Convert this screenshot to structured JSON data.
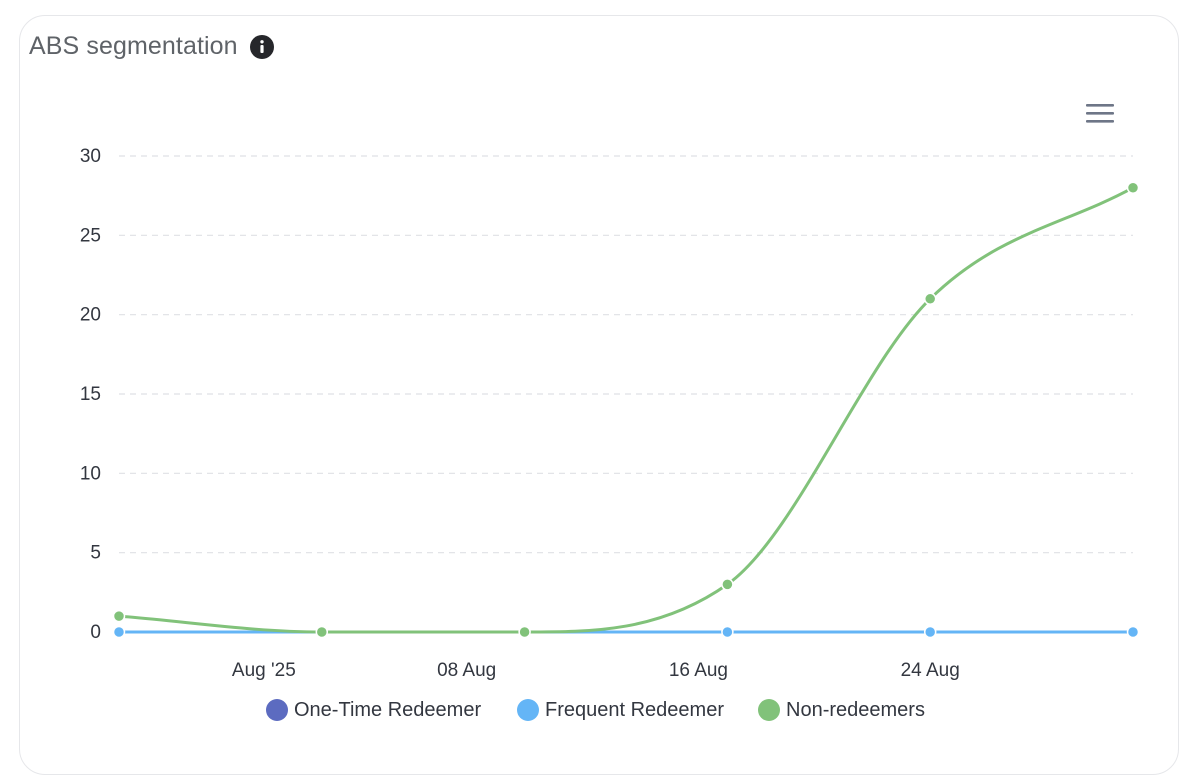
{
  "card": {
    "title": "ABS segmentation",
    "info_icon": "info-icon",
    "menu_icon": "hamburger-menu-icon"
  },
  "colors": {
    "one_time": "#5c6bc0",
    "frequent": "#64b5f6",
    "non_redeemers": "#81c27a",
    "grid": "#dfe1e5",
    "axis_text": "#333740"
  },
  "chart_data": {
    "type": "line",
    "title": "ABS segmentation",
    "xlabel": "",
    "ylabel": "",
    "x": [
      "2025-07-27",
      "2025-08-03",
      "2025-08-10",
      "2025-08-17",
      "2025-08-24",
      "2025-08-31"
    ],
    "x_ticks": [
      {
        "date": "2025-08-01",
        "label": "Aug '25"
      },
      {
        "date": "2025-08-08",
        "label": "08 Aug"
      },
      {
        "date": "2025-08-16",
        "label": "16 Aug"
      },
      {
        "date": "2025-08-24",
        "label": "24 Aug"
      }
    ],
    "y_ticks": [
      0,
      5,
      10,
      15,
      20,
      25,
      30
    ],
    "ylim": [
      0,
      30
    ],
    "grid": true,
    "smooth": true,
    "legend_position": "bottom-center",
    "series": [
      {
        "name": "One-Time Redeemer",
        "color": "#5c6bc0",
        "values": [
          0,
          0,
          0,
          0,
          0,
          0
        ]
      },
      {
        "name": "Frequent Redeemer",
        "color": "#64b5f6",
        "values": [
          0,
          0,
          0,
          0,
          0,
          0
        ]
      },
      {
        "name": "Non-redeemers",
        "color": "#81c27a",
        "values": [
          1,
          0,
          0,
          3,
          21,
          28
        ]
      }
    ]
  }
}
